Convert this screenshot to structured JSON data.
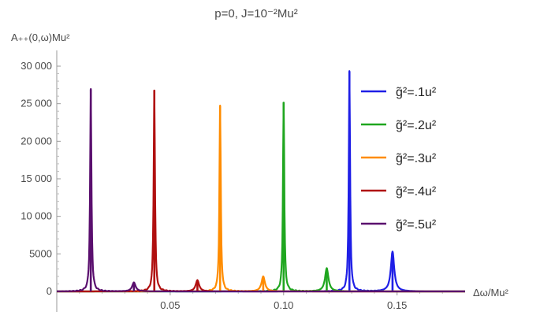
{
  "chart_data": {
    "type": "line",
    "title": "p=0, J=10⁻²Mu²",
    "ylabel": "A₊₊(0,ω)Mu²",
    "xlabel": "Δω/Mu²",
    "xlim": [
      0.0,
      0.18
    ],
    "ylim": [
      -800,
      31000
    ],
    "x_ticks": [
      0.05,
      0.1,
      0.15
    ],
    "x_tick_labels": [
      "0.05",
      "0.10",
      "0.15"
    ],
    "y_ticks": [
      0,
      5000,
      10000,
      15000,
      20000,
      25000,
      30000
    ],
    "y_tick_labels": [
      "0",
      "5000",
      "10 000",
      "15 000",
      "20 000",
      "25 000",
      "30 000"
    ],
    "grid": false,
    "legend_position": "top-right",
    "series": [
      {
        "name": "g̃²=.1u²",
        "color": "#1f1fe6",
        "peaks": [
          {
            "x": 0.129,
            "y": 29300
          },
          {
            "x": 0.148,
            "y": 5300
          }
        ]
      },
      {
        "name": "g̃²=.2u²",
        "color": "#1fa61f",
        "peaks": [
          {
            "x": 0.1,
            "y": 25200
          },
          {
            "x": 0.119,
            "y": 3100
          }
        ]
      },
      {
        "name": "g̃²=.3u²",
        "color": "#ff8c00",
        "peaks": [
          {
            "x": 0.072,
            "y": 24700
          },
          {
            "x": 0.091,
            "y": 2000
          }
        ]
      },
      {
        "name": "g̃²=.4u²",
        "color": "#b01010",
        "peaks": [
          {
            "x": 0.043,
            "y": 26800
          },
          {
            "x": 0.062,
            "y": 1500
          }
        ]
      },
      {
        "name": "g̃²=.5u²",
        "color": "#5a0f6e",
        "peaks": [
          {
            "x": 0.015,
            "y": 26900
          },
          {
            "x": 0.034,
            "y": 1200
          }
        ]
      }
    ]
  }
}
